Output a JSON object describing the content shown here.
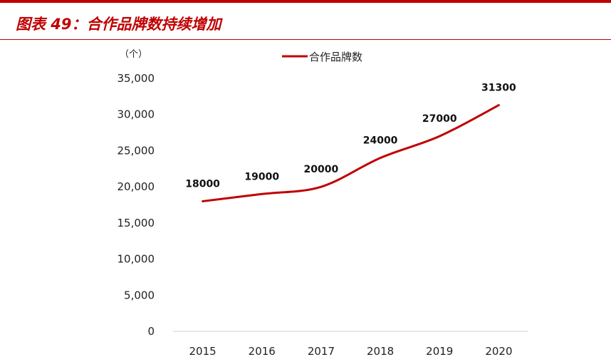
{
  "header": {
    "title": "图表 49：合作品牌数持续增加",
    "accent_color": "#c00000"
  },
  "chart_data": {
    "type": "line",
    "title": "",
    "xlabel": "",
    "ylabel": "",
    "unit_label": "（个）",
    "categories": [
      "2015",
      "2016",
      "2017",
      "2018",
      "2019",
      "2020"
    ],
    "series": [
      {
        "name": "合作品牌数",
        "values": [
          18000,
          19000,
          20000,
          24000,
          27000,
          31300
        ],
        "data_labels": [
          "18000",
          "19000",
          "20000",
          "24000",
          "27000",
          "31300"
        ],
        "color": "#c00000",
        "smooth": true
      }
    ],
    "ylim": [
      0,
      35000
    ],
    "yticks": [
      0,
      5000,
      10000,
      15000,
      20000,
      25000,
      30000,
      35000
    ],
    "ytick_labels": [
      "0",
      "5,000",
      "10,000",
      "15,000",
      "20,000",
      "25,000",
      "30,000",
      "35,000"
    ],
    "grid": false,
    "legend_position": "top-center"
  }
}
